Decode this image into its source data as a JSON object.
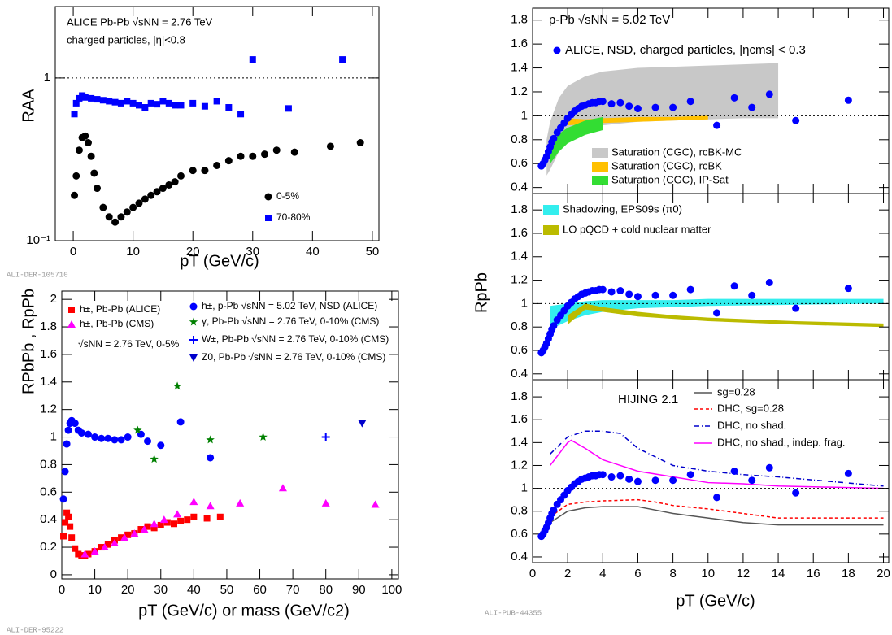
{
  "chart_data": [
    {
      "type": "scatter",
      "log_y": true,
      "x_label": "pT (GeV/c)",
      "y_label": "RAA",
      "annotations": [
        "ALICE Pb-Pb √sNN = 2.76 TeV",
        "charged particles, |η|<0.8"
      ],
      "credit": "ALI-DER-105710",
      "xlim": [
        -3,
        51.1
      ],
      "xticks": [
        0,
        10,
        20,
        30,
        40,
        50
      ],
      "ylim": [
        0.1,
        2.75
      ],
      "yticks": [
        {
          "value": 0.1,
          "label": "10⁻¹"
        },
        1
      ],
      "reference_line": 1,
      "legend": "lower right",
      "series": [
        {
          "name": "0-5%",
          "color": "#000000",
          "marker": "circle",
          "x": [
            0.2,
            0.5,
            1,
            1.5,
            2,
            2.5,
            3,
            3.5,
            4,
            5,
            6,
            7,
            8,
            9,
            10,
            11,
            12,
            13,
            14,
            15,
            16,
            17,
            18,
            20,
            22,
            24,
            26,
            28,
            30,
            32,
            34,
            37,
            43,
            48
          ],
          "values": [
            0.19,
            0.25,
            0.36,
            0.43,
            0.44,
            0.4,
            0.33,
            0.26,
            0.21,
            0.16,
            0.14,
            0.13,
            0.14,
            0.15,
            0.16,
            0.17,
            0.18,
            0.19,
            0.2,
            0.21,
            0.22,
            0.23,
            0.25,
            0.27,
            0.27,
            0.29,
            0.31,
            0.33,
            0.33,
            0.34,
            0.36,
            0.35,
            0.38,
            0.4
          ]
        },
        {
          "name": "70-80%",
          "color": "#0000ff",
          "marker": "square",
          "x": [
            0.2,
            0.5,
            1,
            1.5,
            2,
            3,
            4,
            5,
            6,
            7,
            8,
            9,
            10,
            11,
            12,
            13,
            14,
            15,
            16,
            17,
            18,
            20,
            22,
            24,
            26,
            28,
            30,
            36,
            45
          ],
          "values": [
            0.6,
            0.7,
            0.75,
            0.78,
            0.76,
            0.75,
            0.74,
            0.73,
            0.72,
            0.71,
            0.7,
            0.72,
            0.7,
            0.68,
            0.66,
            0.7,
            0.69,
            0.72,
            0.7,
            0.68,
            0.68,
            0.7,
            0.67,
            0.72,
            0.66,
            0.6,
            1.3,
            0.65,
            1.3
          ]
        }
      ]
    },
    {
      "type": "scatter",
      "x_label": "pT (GeV/c) or mass (GeV/c2)",
      "y_label": "RPbPb , RpPb",
      "annotations": [
        "√sNN = 2.76 TeV, 0-5%"
      ],
      "credit": "ALI-DER-95222",
      "xlim": [
        0,
        102
      ],
      "xticks": [
        0,
        10,
        20,
        30,
        40,
        50,
        60,
        70,
        80,
        90,
        100
      ],
      "ylim": [
        -0.03,
        2.06
      ],
      "yticks": [
        0,
        0.2,
        0.4,
        0.6,
        0.8,
        1,
        1.2,
        1.4,
        1.6,
        1.8,
        2
      ],
      "reference_line": 1,
      "legend": "upper left",
      "series": [
        {
          "name": "h±, Pb-Pb (ALICE)",
          "color": "#ff0000",
          "marker": "square",
          "x": [
            0.5,
            1,
            1.5,
            2,
            2.5,
            3,
            4,
            5,
            6,
            7,
            8,
            10,
            12,
            14,
            16,
            18,
            20,
            22,
            24,
            26,
            28,
            30,
            32,
            34,
            36,
            38,
            40,
            44,
            48
          ],
          "values": [
            0.28,
            0.38,
            0.45,
            0.42,
            0.35,
            0.27,
            0.19,
            0.15,
            0.14,
            0.14,
            0.15,
            0.17,
            0.2,
            0.22,
            0.25,
            0.27,
            0.29,
            0.3,
            0.33,
            0.35,
            0.34,
            0.36,
            0.38,
            0.37,
            0.39,
            0.4,
            0.42,
            0.41,
            0.42
          ]
        },
        {
          "name": "h±, Pb-Pb (CMS)",
          "color": "#ff00ff",
          "marker": "triangle",
          "x": [
            7,
            10,
            13,
            16,
            19,
            22,
            25,
            28,
            31,
            35,
            40,
            45,
            54,
            67,
            80,
            95
          ],
          "values": [
            0.15,
            0.17,
            0.2,
            0.23,
            0.27,
            0.3,
            0.33,
            0.37,
            0.4,
            0.44,
            0.53,
            0.5,
            0.52,
            0.63,
            0.52,
            0.51
          ]
        },
        {
          "name": "h±, p-Pb √sNN = 5.02 TeV, NSD (ALICE)",
          "color": "#0000ff",
          "marker": "circle",
          "x": [
            0.5,
            1,
            1.5,
            2,
            2.5,
            3,
            4,
            5,
            6,
            8,
            10,
            12,
            14,
            16,
            18,
            20,
            24,
            26,
            30,
            36,
            45
          ],
          "values": [
            0.55,
            0.75,
            0.95,
            1.05,
            1.1,
            1.12,
            1.1,
            1.05,
            1.03,
            1.02,
            1.0,
            0.99,
            0.99,
            0.98,
            0.98,
            1.0,
            1.02,
            0.97,
            0.94,
            1.11,
            0.85
          ]
        },
        {
          "name": "γ, Pb-Pb √sNN = 2.76 TeV, 0-10% (CMS)",
          "color": "#008000",
          "marker": "star",
          "x": [
            23,
            28,
            35,
            45,
            61
          ],
          "values": [
            1.05,
            0.84,
            1.37,
            0.98,
            1.0
          ]
        },
        {
          "name": "W±, Pb-Pb √sNN = 2.76 TeV, 0-10% (CMS)",
          "color": "#0000ff",
          "marker": "cross",
          "x": [
            80
          ],
          "values": [
            1.0
          ]
        },
        {
          "name": "Z0, Pb-Pb √sNN = 2.76 TeV, 0-10% (CMS)",
          "color": "#0000cc",
          "marker": "triangle-down",
          "x": [
            91
          ],
          "values": [
            1.1
          ]
        }
      ]
    },
    {
      "type": "scatter",
      "x_label": "pT (GeV/c)",
      "y_label": "RpPb",
      "credit": "ALI-PUB-44355",
      "xlim": [
        0,
        20.3
      ],
      "xticks": [
        0,
        2,
        4,
        6,
        8,
        10,
        12,
        14,
        16,
        18,
        20
      ],
      "reference_line": 1,
      "legend": "upper left",
      "series": [
        {
          "name": "ALICE, NSD, charged particles, |ηcms| < 0.3",
          "color": "#0000ff",
          "marker": "circle",
          "x": [
            0.5,
            0.6,
            0.7,
            0.8,
            0.9,
            1.0,
            1.1,
            1.2,
            1.4,
            1.6,
            1.8,
            2.0,
            2.2,
            2.4,
            2.6,
            2.8,
            3.0,
            3.2,
            3.4,
            3.6,
            3.8,
            4.0,
            4.5,
            5.0,
            5.5,
            6,
            7,
            8,
            9,
            10.5,
            11.5,
            12.5,
            13.5,
            15,
            18
          ],
          "values": [
            0.58,
            0.6,
            0.63,
            0.66,
            0.7,
            0.74,
            0.78,
            0.81,
            0.86,
            0.9,
            0.94,
            0.98,
            1.01,
            1.04,
            1.06,
            1.08,
            1.09,
            1.1,
            1.11,
            1.11,
            1.12,
            1.12,
            1.1,
            1.11,
            1.08,
            1.06,
            1.07,
            1.07,
            1.12,
            0.92,
            1.15,
            1.07,
            1.18,
            0.96,
            1.13
          ]
        }
      ],
      "panels": [
        {
          "ylim": [
            0.35,
            1.9
          ],
          "yticks": [
            0.4,
            0.6,
            0.8,
            1,
            1.2,
            1.4,
            1.6,
            1.8
          ],
          "annotations": [
            "p-Pb √sNN = 5.02 TeV"
          ],
          "bands": [
            {
              "name": "Saturation (CGC), rcBK-MC",
              "color": "#c8c8c8",
              "x": [
                0.8,
                1,
                1.5,
                2,
                3,
                4,
                6,
                8,
                10,
                12,
                14
              ],
              "low": [
                0.5,
                0.55,
                0.7,
                0.8,
                0.88,
                0.92,
                0.95,
                0.96,
                0.97,
                0.98,
                0.98
              ],
              "high": [
                0.8,
                0.95,
                1.15,
                1.25,
                1.33,
                1.37,
                1.4,
                1.41,
                1.42,
                1.43,
                1.44
              ]
            },
            {
              "name": "Saturation (CGC), rcBK",
              "color": "#ffc000",
              "x": [
                2,
                3,
                4,
                6,
                8,
                10
              ],
              "low": [
                0.92,
                0.93,
                0.94,
                0.95,
                0.96,
                0.97
              ],
              "high": [
                0.98,
                0.97,
                0.98,
                0.99,
                0.99,
                1.0
              ]
            },
            {
              "name": "Saturation (CGC), IP-Sat",
              "color": "#33dd33",
              "x": [
                1,
                1.5,
                2,
                3,
                4
              ],
              "low": [
                0.6,
                0.7,
                0.77,
                0.84,
                0.88
              ],
              "high": [
                0.75,
                0.85,
                0.9,
                0.96,
                0.99
              ]
            }
          ]
        },
        {
          "ylim": [
            0.35,
            1.94
          ],
          "yticks": [
            0.4,
            0.6,
            0.8,
            1,
            1.2,
            1.4,
            1.6,
            1.8
          ],
          "bands": [
            {
              "name": "Shadowing, EPS09s (π0)",
              "color": "#33eeee",
              "x": [
                1,
                2,
                3,
                4,
                6,
                8,
                10,
                15,
                20
              ],
              "low": [
                0.78,
                0.85,
                0.9,
                0.93,
                0.96,
                0.97,
                0.98,
                0.99,
                1.0
              ],
              "high": [
                0.98,
                1.0,
                1.02,
                1.03,
                1.03,
                1.03,
                1.04,
                1.04,
                1.04
              ]
            },
            {
              "name": "LO pQCD + cold nuclear matter",
              "color": "#bbbb00",
              "x": [
                2,
                3,
                4,
                6,
                8,
                10,
                15,
                20
              ],
              "low": [
                0.82,
                0.95,
                0.93,
                0.89,
                0.87,
                0.85,
                0.82,
                0.8
              ],
              "high": [
                0.9,
                1.0,
                0.97,
                0.93,
                0.9,
                0.88,
                0.85,
                0.83
              ]
            }
          ]
        },
        {
          "ylim": [
            0.35,
            1.95
          ],
          "yticks": [
            0.4,
            0.6,
            0.8,
            1,
            1.2,
            1.4,
            1.6,
            1.8
          ],
          "annotations": [
            "HIJING 2.1"
          ],
          "lines": [
            {
              "name": "sg=0.28",
              "color": "#555555",
              "dash": "solid",
              "x": [
                1,
                2,
                3,
                4,
                6,
                7,
                8,
                10,
                12,
                14,
                20
              ],
              "values": [
                0.7,
                0.8,
                0.83,
                0.84,
                0.84,
                0.81,
                0.78,
                0.74,
                0.7,
                0.68,
                0.68
              ]
            },
            {
              "name": "DHC, sg=0.28",
              "color": "#ff0000",
              "dash": "dashed",
              "x": [
                1,
                2,
                3,
                4,
                6,
                7,
                8,
                10,
                12,
                14,
                20
              ],
              "values": [
                0.75,
                0.86,
                0.88,
                0.89,
                0.9,
                0.88,
                0.85,
                0.82,
                0.78,
                0.74,
                0.74
              ]
            },
            {
              "name": "DHC, no shad.",
              "color": "#0000cc",
              "dash": "dashdot",
              "x": [
                1,
                2,
                3,
                4,
                5,
                6,
                8,
                10,
                12,
                14,
                20
              ],
              "values": [
                1.3,
                1.45,
                1.5,
                1.5,
                1.48,
                1.35,
                1.2,
                1.15,
                1.12,
                1.1,
                1.02
              ]
            },
            {
              "name": "DHC, no shad., indep. frag.",
              "color": "#ff00ff",
              "dash": "solid",
              "x": [
                1,
                2,
                2.2,
                3,
                4,
                5,
                6,
                8,
                10,
                12,
                14,
                20
              ],
              "values": [
                1.2,
                1.4,
                1.42,
                1.35,
                1.25,
                1.2,
                1.15,
                1.1,
                1.05,
                1.04,
                1.02,
                1.0
              ]
            }
          ]
        }
      ]
    }
  ]
}
